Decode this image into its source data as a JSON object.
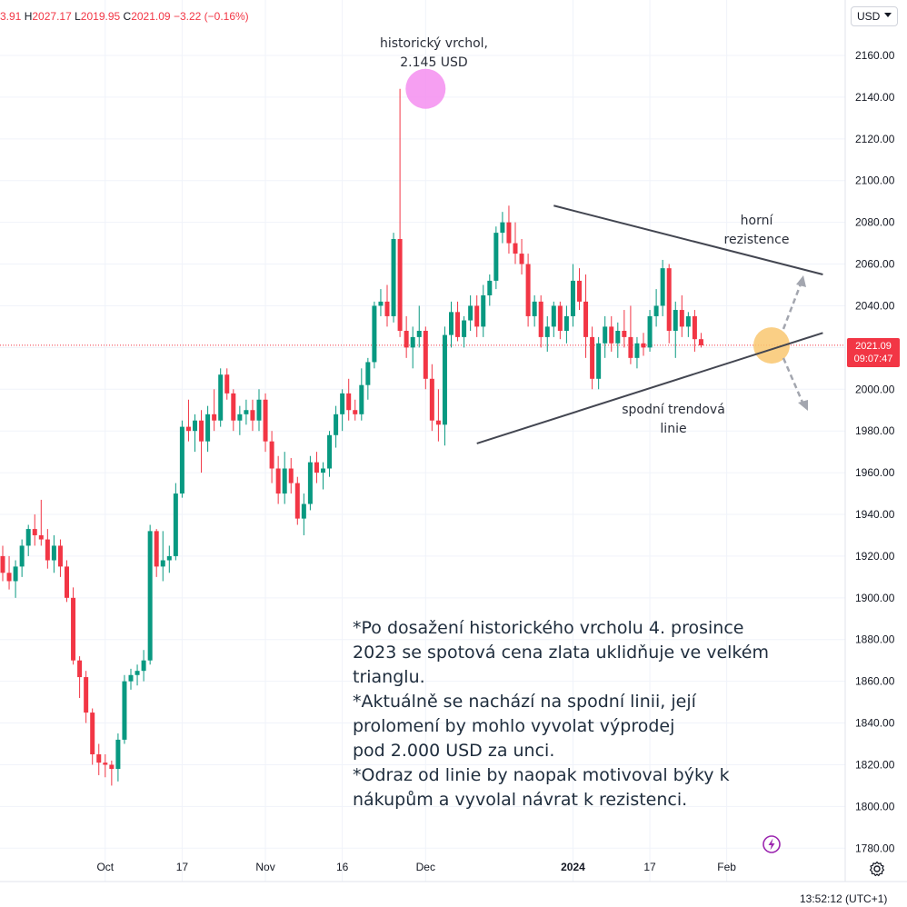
{
  "header": {
    "open_partial": "3.91",
    "high_label": "H",
    "high": "2027.17",
    "low_label": "L",
    "low": "2019.95",
    "close_label": "C",
    "close": "2021.09",
    "change": "−3.22 (−0.16%)"
  },
  "currency_button": "USD",
  "price_tag": {
    "price": "2021.09",
    "countdown": "09:07:47"
  },
  "footer_time": "13:52:12 (UTC+1)",
  "annotations": {
    "ath": "historický vrchol,\n2.145 USD",
    "resistance": "horní\nrezistence",
    "support": "spodní trendová\nlinie"
  },
  "note_lines": [
    "*Po dosažení historického vrcholu 4. prosince 2023 se spotová cena zlata uklidňuje ve velkém trianglu.",
    "*Aktuálně se nachází na spodní linii, její prolomení by mohlo vyvolat výprodej\npod 2.000 USD za unci.",
    "*Odraz od linie by naopak motivoval býky k nákupům a vyvolal návrat k rezistenci."
  ],
  "colors": {
    "up": "#089981",
    "down": "#f23645",
    "grid": "#f0f3fa",
    "trendline": "#434651",
    "ath_circle": "#f48ef0",
    "support_circle": "#f9c770",
    "arrow": "#a3a6af",
    "tv_icon": "#9c27b0"
  },
  "icons": {
    "settings": "gear-icon",
    "brand": "tradingview-icon"
  },
  "chart_data": {
    "type": "candlestick",
    "ylim": [
      1775,
      2175
    ],
    "y_ticks": [
      "2160.00",
      "2140.00",
      "2120.00",
      "2100.00",
      "2080.00",
      "2060.00",
      "2040.00",
      "2020.00",
      "2000.00",
      "1980.00",
      "1960.00",
      "1940.00",
      "1920.00",
      "1900.00",
      "1880.00",
      "1860.00",
      "1840.00",
      "1820.00",
      "1800.00",
      "1780.00"
    ],
    "x_labels": [
      {
        "bar": 16,
        "label": "Oct"
      },
      {
        "bar": 28,
        "label": "17"
      },
      {
        "bar": 41,
        "label": "Nov"
      },
      {
        "bar": 53,
        "label": "16"
      },
      {
        "bar": 66,
        "label": "Dec"
      },
      {
        "bar": 89,
        "label": "2024",
        "bold": true
      },
      {
        "bar": 101,
        "label": "17"
      },
      {
        "bar": 113,
        "label": "Feb"
      }
    ],
    "current_price": 2021.09,
    "trendlines": [
      {
        "name": "upper-resistance",
        "from": [
          86,
          2088
        ],
        "to": [
          128,
          2055
        ]
      },
      {
        "name": "lower-support",
        "from": [
          74,
          1974
        ],
        "to": [
          128,
          2027
        ]
      }
    ],
    "highlights": [
      {
        "name": "ath",
        "bar": 66,
        "y": 2144
      },
      {
        "name": "support-touch",
        "bar": 120,
        "y": 2021
      }
    ],
    "candles": [
      {
        "o": 1920,
        "h": 1925,
        "l": 1908,
        "c": 1912
      },
      {
        "o": 1912,
        "h": 1920,
        "l": 1904,
        "c": 1908
      },
      {
        "o": 1908,
        "h": 1918,
        "l": 1900,
        "c": 1915
      },
      {
        "o": 1915,
        "h": 1928,
        "l": 1910,
        "c": 1925
      },
      {
        "o": 1925,
        "h": 1935,
        "l": 1920,
        "c": 1933
      },
      {
        "o": 1933,
        "h": 1940,
        "l": 1925,
        "c": 1930
      },
      {
        "o": 1930,
        "h": 1947,
        "l": 1925,
        "c": 1928
      },
      {
        "o": 1928,
        "h": 1933,
        "l": 1914,
        "c": 1918
      },
      {
        "o": 1918,
        "h": 1930,
        "l": 1912,
        "c": 1925
      },
      {
        "o": 1925,
        "h": 1928,
        "l": 1910,
        "c": 1915
      },
      {
        "o": 1915,
        "h": 1918,
        "l": 1898,
        "c": 1900
      },
      {
        "o": 1900,
        "h": 1905,
        "l": 1868,
        "c": 1870
      },
      {
        "o": 1870,
        "h": 1872,
        "l": 1852,
        "c": 1862
      },
      {
        "o": 1862,
        "h": 1865,
        "l": 1840,
        "c": 1845
      },
      {
        "o": 1845,
        "h": 1847,
        "l": 1820,
        "c": 1825
      },
      {
        "o": 1825,
        "h": 1830,
        "l": 1815,
        "c": 1821
      },
      {
        "o": 1821,
        "h": 1825,
        "l": 1814,
        "c": 1820
      },
      {
        "o": 1820,
        "h": 1822,
        "l": 1810,
        "c": 1818
      },
      {
        "o": 1818,
        "h": 1835,
        "l": 1812,
        "c": 1832
      },
      {
        "o": 1832,
        "h": 1863,
        "l": 1830,
        "c": 1860
      },
      {
        "o": 1860,
        "h": 1866,
        "l": 1856,
        "c": 1863
      },
      {
        "o": 1863,
        "h": 1868,
        "l": 1858,
        "c": 1865
      },
      {
        "o": 1865,
        "h": 1875,
        "l": 1860,
        "c": 1870
      },
      {
        "o": 1870,
        "h": 1935,
        "l": 1868,
        "c": 1932
      },
      {
        "o": 1932,
        "h": 1933,
        "l": 1910,
        "c": 1915
      },
      {
        "o": 1915,
        "h": 1932,
        "l": 1908,
        "c": 1918
      },
      {
        "o": 1918,
        "h": 1925,
        "l": 1912,
        "c": 1920
      },
      {
        "o": 1920,
        "h": 1955,
        "l": 1918,
        "c": 1950
      },
      {
        "o": 1950,
        "h": 1985,
        "l": 1948,
        "c": 1982
      },
      {
        "o": 1982,
        "h": 1995,
        "l": 1975,
        "c": 1980
      },
      {
        "o": 1980,
        "h": 1988,
        "l": 1970,
        "c": 1985
      },
      {
        "o": 1985,
        "h": 1990,
        "l": 1960,
        "c": 1975
      },
      {
        "o": 1975,
        "h": 1992,
        "l": 1970,
        "c": 1988
      },
      {
        "o": 1988,
        "h": 2000,
        "l": 1980,
        "c": 1985
      },
      {
        "o": 1985,
        "h": 2010,
        "l": 1982,
        "c": 2007
      },
      {
        "o": 2007,
        "h": 2010,
        "l": 1995,
        "c": 1998
      },
      {
        "o": 1998,
        "h": 2000,
        "l": 1980,
        "c": 1985
      },
      {
        "o": 1985,
        "h": 1992,
        "l": 1978,
        "c": 1988
      },
      {
        "o": 1988,
        "h": 1995,
        "l": 1983,
        "c": 1990
      },
      {
        "o": 1990,
        "h": 1995,
        "l": 1980,
        "c": 1985
      },
      {
        "o": 1985,
        "h": 2000,
        "l": 1980,
        "c": 1995
      },
      {
        "o": 1995,
        "h": 1998,
        "l": 1970,
        "c": 1975
      },
      {
        "o": 1975,
        "h": 1980,
        "l": 1955,
        "c": 1962
      },
      {
        "o": 1962,
        "h": 1968,
        "l": 1945,
        "c": 1950
      },
      {
        "o": 1950,
        "h": 1970,
        "l": 1945,
        "c": 1962
      },
      {
        "o": 1962,
        "h": 1967,
        "l": 1950,
        "c": 1955
      },
      {
        "o": 1955,
        "h": 1958,
        "l": 1935,
        "c": 1938
      },
      {
        "o": 1938,
        "h": 1950,
        "l": 1930,
        "c": 1945
      },
      {
        "o": 1945,
        "h": 1968,
        "l": 1942,
        "c": 1965
      },
      {
        "o": 1965,
        "h": 1970,
        "l": 1955,
        "c": 1960
      },
      {
        "o": 1960,
        "h": 1965,
        "l": 1952,
        "c": 1962
      },
      {
        "o": 1962,
        "h": 1980,
        "l": 1958,
        "c": 1978
      },
      {
        "o": 1978,
        "h": 1992,
        "l": 1972,
        "c": 1988
      },
      {
        "o": 1988,
        "h": 2000,
        "l": 1980,
        "c": 1998
      },
      {
        "o": 1998,
        "h": 2005,
        "l": 1985,
        "c": 1990
      },
      {
        "o": 1990,
        "h": 1995,
        "l": 1985,
        "c": 1988
      },
      {
        "o": 1988,
        "h": 2010,
        "l": 1985,
        "c": 2002
      },
      {
        "o": 2002,
        "h": 2015,
        "l": 1995,
        "c": 2013
      },
      {
        "o": 2013,
        "h": 2042,
        "l": 2010,
        "c": 2040
      },
      {
        "o": 2040,
        "h": 2048,
        "l": 2035,
        "c": 2042
      },
      {
        "o": 2042,
        "h": 2050,
        "l": 2030,
        "c": 2035
      },
      {
        "o": 2035,
        "h": 2075,
        "l": 2032,
        "c": 2072
      },
      {
        "o": 2072,
        "h": 2144,
        "l": 2025,
        "c": 2028
      },
      {
        "o": 2028,
        "h": 2035,
        "l": 2015,
        "c": 2020
      },
      {
        "o": 2020,
        "h": 2030,
        "l": 2010,
        "c": 2025
      },
      {
        "o": 2025,
        "h": 2040,
        "l": 2020,
        "c": 2028
      },
      {
        "o": 2028,
        "h": 2030,
        "l": 2000,
        "c": 2005
      },
      {
        "o": 2005,
        "h": 2012,
        "l": 1980,
        "c": 1985
      },
      {
        "o": 1985,
        "h": 2000,
        "l": 1975,
        "c": 1983
      },
      {
        "o": 1983,
        "h": 2030,
        "l": 1973,
        "c": 2026
      },
      {
        "o": 2026,
        "h": 2042,
        "l": 2020,
        "c": 2037
      },
      {
        "o": 2037,
        "h": 2042,
        "l": 2023,
        "c": 2025
      },
      {
        "o": 2025,
        "h": 2035,
        "l": 2020,
        "c": 2033
      },
      {
        "o": 2033,
        "h": 2045,
        "l": 2028,
        "c": 2040
      },
      {
        "o": 2040,
        "h": 2045,
        "l": 2025,
        "c": 2030
      },
      {
        "o": 2030,
        "h": 2050,
        "l": 2025,
        "c": 2045
      },
      {
        "o": 2045,
        "h": 2055,
        "l": 2040,
        "c": 2052
      },
      {
        "o": 2052,
        "h": 2078,
        "l": 2048,
        "c": 2075
      },
      {
        "o": 2075,
        "h": 2085,
        "l": 2070,
        "c": 2080
      },
      {
        "o": 2080,
        "h": 2088,
        "l": 2065,
        "c": 2070
      },
      {
        "o": 2070,
        "h": 2080,
        "l": 2060,
        "c": 2065
      },
      {
        "o": 2065,
        "h": 2072,
        "l": 2055,
        "c": 2060
      },
      {
        "o": 2060,
        "h": 2065,
        "l": 2030,
        "c": 2035
      },
      {
        "o": 2035,
        "h": 2045,
        "l": 2030,
        "c": 2042
      },
      {
        "o": 2042,
        "h": 2045,
        "l": 2020,
        "c": 2025
      },
      {
        "o": 2025,
        "h": 2035,
        "l": 2018,
        "c": 2030
      },
      {
        "o": 2030,
        "h": 2042,
        "l": 2025,
        "c": 2040
      },
      {
        "o": 2040,
        "h": 2042,
        "l": 2024,
        "c": 2028
      },
      {
        "o": 2028,
        "h": 2040,
        "l": 2022,
        "c": 2035
      },
      {
        "o": 2035,
        "h": 2060,
        "l": 2030,
        "c": 2052
      },
      {
        "o": 2052,
        "h": 2058,
        "l": 2038,
        "c": 2042
      },
      {
        "o": 2042,
        "h": 2055,
        "l": 2015,
        "c": 2025
      },
      {
        "o": 2025,
        "h": 2030,
        "l": 2000,
        "c": 2005
      },
      {
        "o": 2005,
        "h": 2025,
        "l": 2000,
        "c": 2022
      },
      {
        "o": 2022,
        "h": 2035,
        "l": 2015,
        "c": 2030
      },
      {
        "o": 2030,
        "h": 2035,
        "l": 2018,
        "c": 2022
      },
      {
        "o": 2022,
        "h": 2032,
        "l": 2015,
        "c": 2028
      },
      {
        "o": 2028,
        "h": 2038,
        "l": 2020,
        "c": 2025
      },
      {
        "o": 2025,
        "h": 2040,
        "l": 2012,
        "c": 2015
      },
      {
        "o": 2015,
        "h": 2025,
        "l": 2010,
        "c": 2022
      },
      {
        "o": 2022,
        "h": 2027,
        "l": 2016,
        "c": 2020
      },
      {
        "o": 2020,
        "h": 2038,
        "l": 2018,
        "c": 2035
      },
      {
        "o": 2035,
        "h": 2048,
        "l": 2030,
        "c": 2040
      },
      {
        "o": 2040,
        "h": 2062,
        "l": 2035,
        "c": 2058
      },
      {
        "o": 2058,
        "h": 2060,
        "l": 2022,
        "c": 2028
      },
      {
        "o": 2028,
        "h": 2042,
        "l": 2015,
        "c": 2038
      },
      {
        "o": 2038,
        "h": 2045,
        "l": 2025,
        "c": 2030
      },
      {
        "o": 2030,
        "h": 2037,
        "l": 2025,
        "c": 2035
      },
      {
        "o": 2035,
        "h": 2038,
        "l": 2018,
        "c": 2024
      },
      {
        "o": 2024,
        "h": 2027,
        "l": 2020,
        "c": 2021
      }
    ]
  }
}
